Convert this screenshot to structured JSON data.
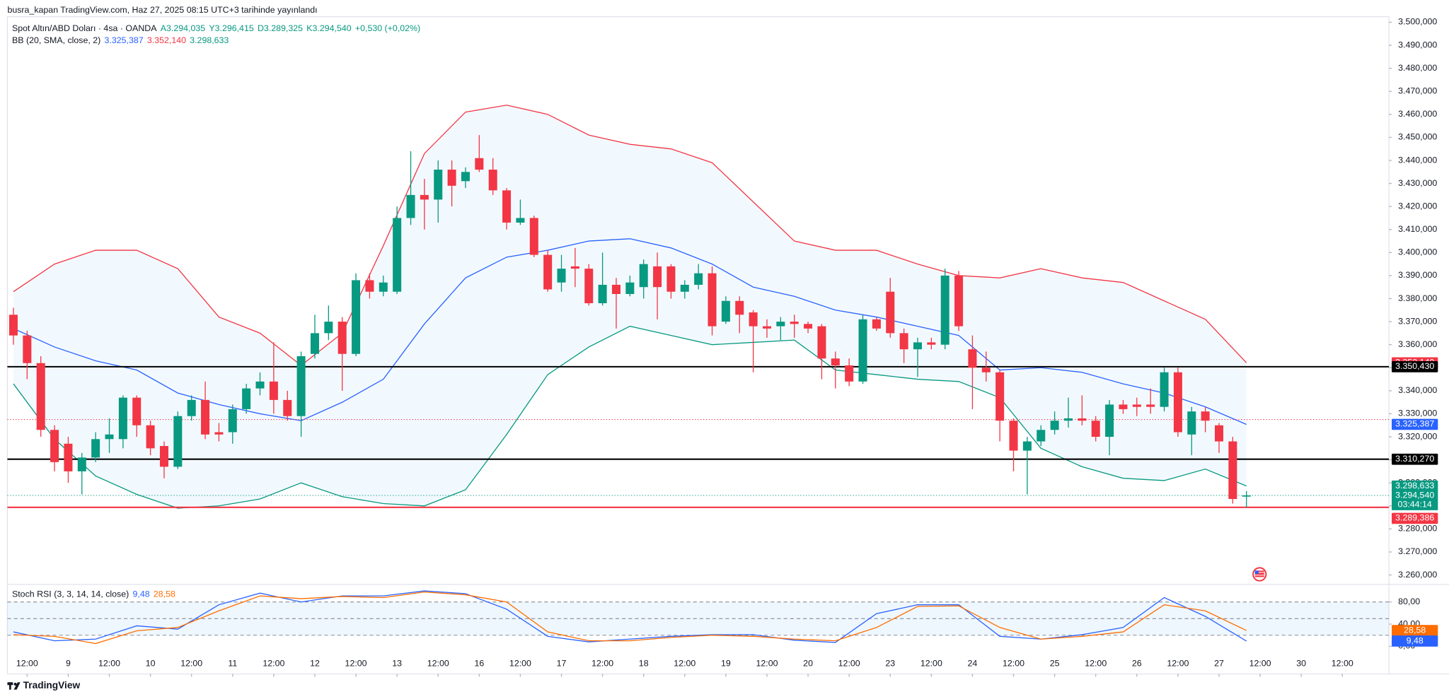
{
  "chart_data": [
    {
      "type": "candlestick",
      "title": "busra_kapan TradingView.com, Haz 27, 2025 08:15 UTC+3 tarihinde yayınlandı",
      "symbol": "Spot Altın/ABD Doları · 4sa · OANDA",
      "legend_values": [
        "A3.294,035",
        "Y3.296,415",
        "D3.289,325",
        "K3.294,540",
        "+0,530 (+0,02%)"
      ],
      "up_color": "#089981",
      "down_color": "#f23645",
      "open": [
        3.373,
        3.364,
        3.352,
        3.323,
        3.317,
        3.305,
        3.311,
        3.319,
        3.319,
        3.337,
        3.325,
        3.316,
        3.307,
        3.329,
        3.336,
        3.322,
        3.322,
        3.332,
        3.341,
        3.344,
        3.336,
        3.329,
        3.356,
        3.365,
        3.37,
        3.356,
        3.388,
        3.383,
        3.383,
        3.415,
        3.425,
        3.423,
        3.436,
        3.431,
        3.441,
        3.436,
        3.427,
        3.413,
        3.415,
        3.399,
        3.387,
        3.394,
        3.393,
        3.378,
        3.386,
        3.382,
        3.385,
        3.394,
        3.394,
        3.383,
        3.386,
        3.391,
        3.37,
        3.379,
        3.374,
        3.368,
        3.368,
        3.37,
        3.369,
        3.368,
        3.354,
        3.351,
        3.344,
        3.371,
        3.383,
        3.365,
        3.358,
        3.361,
        3.36,
        3.39,
        3.358,
        3.35,
        3.348,
        3.327,
        3.314,
        3.318,
        3.323,
        3.327,
        3.328,
        3.327,
        3.32,
        3.334,
        3.334,
        3.334,
        3.333,
        3.348,
        3.321,
        3.331,
        3.325,
        3.318,
        3.294035
      ],
      "high": [
        3.376,
        3.366,
        3.355,
        3.325,
        3.32,
        3.313,
        3.322,
        3.328,
        3.338,
        3.338,
        3.327,
        3.318,
        3.331,
        3.338,
        3.344,
        3.326,
        3.334,
        3.343,
        3.348,
        3.361,
        3.34,
        3.357,
        3.373,
        3.377,
        3.372,
        3.391,
        3.391,
        3.39,
        3.42,
        3.444,
        3.432,
        3.44,
        3.44,
        3.437,
        3.451,
        3.441,
        3.428,
        3.423,
        3.416,
        3.401,
        3.399,
        3.402,
        3.395,
        3.4,
        3.389,
        3.39,
        3.397,
        3.4,
        3.395,
        3.388,
        3.395,
        3.394,
        3.381,
        3.381,
        3.375,
        3.371,
        3.372,
        3.373,
        3.37,
        3.369,
        3.357,
        3.354,
        3.373,
        3.372,
        3.389,
        3.367,
        3.363,
        3.363,
        3.393,
        3.392,
        3.364,
        3.357,
        3.349,
        3.328,
        3.32,
        3.325,
        3.331,
        3.337,
        3.338,
        3.329,
        3.336,
        3.336,
        3.337,
        3.341,
        3.35,
        3.35,
        3.333,
        3.333,
        3.326,
        3.32,
        3.296415
      ],
      "low": [
        3.36,
        3.345,
        3.32,
        3.305,
        3.3,
        3.295,
        3.309,
        3.313,
        3.315,
        3.32,
        3.312,
        3.302,
        3.306,
        3.327,
        3.319,
        3.318,
        3.317,
        3.33,
        3.338,
        3.33,
        3.327,
        3.32,
        3.354,
        3.362,
        3.34,
        3.355,
        3.38,
        3.381,
        3.382,
        3.412,
        3.41,
        3.413,
        3.42,
        3.428,
        3.435,
        3.425,
        3.41,
        3.412,
        3.398,
        3.383,
        3.383,
        3.385,
        3.377,
        3.377,
        3.367,
        3.381,
        3.38,
        3.371,
        3.38,
        3.38,
        3.384,
        3.364,
        3.369,
        3.365,
        3.348,
        3.363,
        3.362,
        3.363,
        3.365,
        3.345,
        3.341,
        3.342,
        3.343,
        3.366,
        3.363,
        3.352,
        3.346,
        3.358,
        3.358,
        3.366,
        3.332,
        3.344,
        3.318,
        3.305,
        3.295,
        3.316,
        3.321,
        3.324,
        3.325,
        3.318,
        3.312,
        3.33,
        3.329,
        3.33,
        3.331,
        3.32,
        3.312,
        3.322,
        3.313,
        3.291,
        3.289325
      ],
      "close": [
        3.364,
        3.352,
        3.323,
        3.309,
        3.305,
        3.311,
        3.319,
        3.321,
        3.337,
        3.325,
        3.315,
        3.307,
        3.329,
        3.336,
        3.321,
        3.321,
        3.332,
        3.341,
        3.344,
        3.336,
        3.329,
        3.355,
        3.365,
        3.37,
        3.356,
        3.388,
        3.383,
        3.387,
        3.415,
        3.425,
        3.423,
        3.436,
        3.429,
        3.435,
        3.436,
        3.427,
        3.413,
        3.415,
        3.399,
        3.384,
        3.393,
        3.393,
        3.378,
        3.386,
        3.382,
        3.387,
        3.395,
        3.385,
        3.383,
        3.386,
        3.391,
        3.368,
        3.379,
        3.373,
        3.368,
        3.367,
        3.37,
        3.369,
        3.367,
        3.354,
        3.351,
        3.344,
        3.371,
        3.367,
        3.365,
        3.358,
        3.361,
        3.36,
        3.39,
        3.368,
        3.35,
        3.348,
        3.327,
        3.314,
        3.318,
        3.323,
        3.327,
        3.328,
        3.327,
        3.32,
        3.334,
        3.332,
        3.333,
        3.333,
        3.348,
        3.322,
        3.331,
        3.327,
        3.318,
        3.293,
        3.29454
      ],
      "close_label": "3.294,540",
      "close_countdown": "03:44:14",
      "xlim": [
        -0.44,
        100.4
      ],
      "xticks": [
        {
          "value": 1,
          "label": "12:00"
        },
        {
          "value": 4,
          "label": "9"
        },
        {
          "value": 7,
          "label": "12:00"
        },
        {
          "value": 10,
          "label": "10"
        },
        {
          "value": 13,
          "label": "12:00"
        },
        {
          "value": 16,
          "label": "11"
        },
        {
          "value": 19,
          "label": "12:00"
        },
        {
          "value": 22,
          "label": "12"
        },
        {
          "value": 25,
          "label": "12:00"
        },
        {
          "value": 28,
          "label": "13"
        },
        {
          "value": 31,
          "label": "12:00"
        },
        {
          "value": 34,
          "label": "16"
        },
        {
          "value": 37,
          "label": "12:00"
        },
        {
          "value": 40,
          "label": "17"
        },
        {
          "value": 43,
          "label": "12:00"
        },
        {
          "value": 46,
          "label": "18"
        },
        {
          "value": 49,
          "label": "12:00"
        },
        {
          "value": 52,
          "label": "19"
        },
        {
          "value": 55,
          "label": "12:00"
        },
        {
          "value": 58,
          "label": "20"
        },
        {
          "value": 61,
          "label": "12:00"
        },
        {
          "value": 64,
          "label": "23"
        },
        {
          "value": 67,
          "label": "12:00"
        },
        {
          "value": 70,
          "label": "24"
        },
        {
          "value": 73,
          "label": "12:00"
        },
        {
          "value": 76,
          "label": "25"
        },
        {
          "value": 79,
          "label": "12:00"
        },
        {
          "value": 82,
          "label": "26"
        },
        {
          "value": 85,
          "label": "12:00"
        },
        {
          "value": 88,
          "label": "27"
        },
        {
          "value": 91,
          "label": "12:00"
        },
        {
          "value": 94,
          "label": "30"
        },
        {
          "value": 97,
          "label": "12:00"
        }
      ],
      "ylim": [
        3.2563,
        3.5024
      ],
      "yticks": [
        {
          "value": 3.26,
          "label": "3.260,000"
        },
        {
          "value": 3.27,
          "label": "3.270,000"
        },
        {
          "value": 3.28,
          "label": "3.280,000"
        },
        {
          "value": 3.29,
          "label": "3.290,000"
        },
        {
          "value": 3.3,
          "label": "3.300,000"
        },
        {
          "value": 3.31,
          "label": "3.310,000"
        },
        {
          "value": 3.32,
          "label": "3.320,000"
        },
        {
          "value": 3.33,
          "label": "3.330,000"
        },
        {
          "value": 3.34,
          "label": "3.340,000"
        },
        {
          "value": 3.35,
          "label": "3.350,000"
        },
        {
          "value": 3.36,
          "label": "3.360,000"
        },
        {
          "value": 3.37,
          "label": "3.370,000"
        },
        {
          "value": 3.38,
          "label": "3.380,000"
        },
        {
          "value": 3.39,
          "label": "3.390,000"
        },
        {
          "value": 3.4,
          "label": "3.400,000"
        },
        {
          "value": 3.41,
          "label": "3.410,000"
        },
        {
          "value": 3.42,
          "label": "3.420,000"
        },
        {
          "value": 3.43,
          "label": "3.430,000"
        },
        {
          "value": 3.44,
          "label": "3.440,000"
        },
        {
          "value": 3.45,
          "label": "3.450,000"
        },
        {
          "value": 3.46,
          "label": "3.460,000"
        },
        {
          "value": 3.47,
          "label": "3.470,000"
        },
        {
          "value": 3.48,
          "label": "3.480,000"
        },
        {
          "value": 3.49,
          "label": "3.490,000"
        },
        {
          "value": 3.5,
          "label": "3.500,000"
        }
      ],
      "bollinger": {
        "name": "BB (20, SMA, close, 2)",
        "fill_color": "#2196f3",
        "x": [
          0,
          3,
          6,
          9,
          12,
          15,
          18,
          21,
          24,
          27,
          30,
          33,
          36,
          39,
          42,
          45,
          48,
          51,
          54,
          57,
          60,
          63,
          66,
          69,
          72,
          75,
          78,
          81,
          84,
          87,
          90
        ],
        "series": [
          {
            "color": "#2962ff",
            "last_label": "3.325,387",
            "values": [
              3.367,
              3.359,
              3.353,
              3.349,
              3.339,
              3.334,
              3.33,
              3.327,
              3.335,
              3.345,
              3.369,
              3.389,
              3.398,
              3.401,
              3.405,
              3.406,
              3.402,
              3.395,
              3.385,
              3.381,
              3.375,
              3.372,
              3.368,
              3.364,
              3.349,
              3.35,
              3.348,
              3.343,
              3.339,
              3.333,
              3.325387
            ]
          },
          {
            "color": "#f23645",
            "last_label": "3.352,140",
            "values": [
              3.383,
              3.395,
              3.401,
              3.401,
              3.393,
              3.372,
              3.365,
              3.351,
              3.365,
              3.403,
              3.443,
              3.461,
              3.464,
              3.46,
              3.451,
              3.447,
              3.445,
              3.439,
              3.422,
              3.405,
              3.401,
              3.401,
              3.395,
              3.39,
              3.389,
              3.393,
              3.389,
              3.387,
              3.379,
              3.371,
              3.35214
            ]
          },
          {
            "color": "#089981",
            "last_label": "3.298,633",
            "values": [
              3.343,
              3.319,
              3.303,
              3.295,
              3.289,
              3.29,
              3.293,
              3.3,
              3.294,
              3.291,
              3.29,
              3.297,
              3.321,
              3.347,
              3.359,
              3.368,
              3.364,
              3.36,
              3.361,
              3.362,
              3.349,
              3.347,
              3.345,
              3.344,
              3.337,
              3.315,
              3.307,
              3.302,
              3.301,
              3.306,
              3.298633
            ]
          }
        ]
      },
      "levels": [
        {
          "value": 3.35043,
          "label": "3.350,430",
          "color": "#000000"
        },
        {
          "value": 3.31027,
          "label": "3.310,270",
          "color": "#000000"
        },
        {
          "value": 3.289386,
          "label": "3.289,386",
          "color": "#f23645"
        }
      ],
      "dotted_lines": [
        {
          "value": 3.3275,
          "color": "#f23645"
        }
      ],
      "watermark": "TradingView"
    },
    {
      "type": "line",
      "title": "Stoch RSI (3, 3, 14, 14, close)",
      "x": [
        0,
        3,
        6,
        9,
        12,
        15,
        18,
        21,
        24,
        27,
        30,
        33,
        36,
        39,
        42,
        45,
        48,
        51,
        54,
        57,
        60,
        63,
        66,
        69,
        72,
        75,
        78,
        81,
        84,
        87,
        90
      ],
      "xlim": [
        -0.44,
        100.4
      ],
      "ylim": [
        -8.3,
        106.7
      ],
      "yticks": [
        {
          "value": 0,
          "label": "0,00"
        },
        {
          "value": 40,
          "label": "40,00"
        },
        {
          "value": 80,
          "label": "80,00"
        }
      ],
      "band_lines": [
        20,
        50,
        80
      ],
      "series": [
        {
          "color": "#2962ff",
          "last_label": "9,48",
          "values": [
            26,
            10,
            13,
            37,
            31,
            75,
            96,
            80,
            91,
            91,
            100,
            95,
            67,
            18,
            8,
            13,
            18,
            21,
            21,
            11,
            7,
            59,
            75,
            75,
            18,
            13,
            21,
            34,
            88,
            54,
            9.48
          ]
        },
        {
          "color": "#ff6d00",
          "last_label": "28,58",
          "values": [
            21,
            18,
            5,
            28,
            34,
            64,
            91,
            86,
            90,
            88,
            98,
            93,
            80,
            26,
            10,
            10,
            16,
            20,
            18,
            13,
            10,
            34,
            72,
            73,
            34,
            13,
            18,
            26,
            75,
            64,
            28.58
          ]
        }
      ]
    }
  ]
}
